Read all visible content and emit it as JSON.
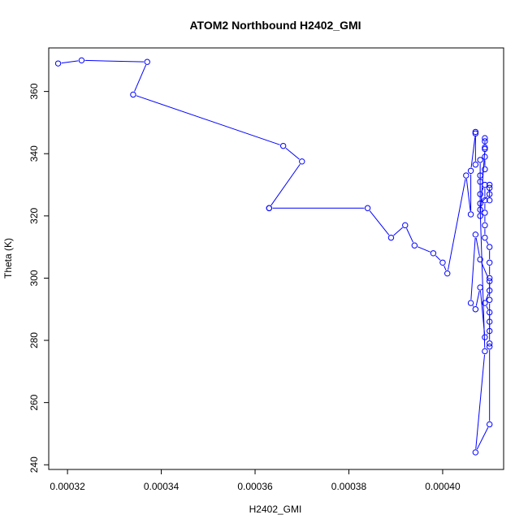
{
  "chart_data": {
    "type": "scatter",
    "title": "ATOM2 Northbound H2402_GMI",
    "xlabel": "H2402_GMI",
    "ylabel": "Theta (K)",
    "xlim": [
      0.000316,
      0.000413
    ],
    "ylim": [
      238.5,
      374
    ],
    "grid": false,
    "connect_points": true,
    "x_ticks": [
      0.00032,
      0.00034,
      0.00036,
      0.00038,
      0.0004
    ],
    "x_tick_labels": [
      "0.00032",
      "0.00034",
      "0.00036",
      "0.00038",
      "0.00040"
    ],
    "y_ticks": [
      240,
      260,
      280,
      300,
      320,
      340,
      360
    ],
    "y_tick_labels": [
      "240",
      "260",
      "280",
      "300",
      "320",
      "340",
      "360"
    ],
    "series": [
      {
        "color": "#0000ff",
        "marker": "open-circle",
        "x": [
          0.000318,
          0.000323,
          0.000337,
          0.000334,
          0.000366,
          0.00037,
          0.000363,
          0.000363,
          0.000384,
          0.000389,
          0.000392,
          0.000394,
          0.000398,
          0.0004,
          0.000401,
          0.000405,
          0.000406,
          0.000406,
          0.000407,
          0.000407,
          0.000407,
          0.000408,
          0.000408,
          0.000408,
          0.000409,
          0.000409,
          0.000409,
          0.000409,
          0.000409,
          0.000409,
          0.000408,
          0.000408,
          0.000409,
          0.000409,
          0.000409,
          0.000409,
          0.000409,
          0.00041,
          0.00041,
          0.00041,
          0.00041,
          0.000409,
          0.00041,
          0.00041,
          0.00041,
          0.000409,
          0.000408,
          0.000407,
          0.000406,
          0.000407,
          0.000408,
          0.00041,
          0.00041,
          0.00041,
          0.00041,
          0.00041,
          0.000407,
          0.000409,
          0.000408,
          0.000408,
          0.00041,
          0.00041,
          0.00041,
          0.00041
        ],
        "y": [
          369,
          370,
          369.5,
          359,
          342.5,
          337.5,
          322.5,
          322.5,
          322.5,
          313,
          317,
          310.5,
          308,
          305,
          301.5,
          333,
          320.5,
          334.5,
          346.5,
          347,
          336.5,
          338,
          331,
          320,
          341.5,
          344,
          345,
          342,
          339,
          335,
          333,
          327,
          330,
          325,
          321,
          317,
          313,
          310,
          305,
          300,
          296,
          292,
          289,
          286,
          283,
          281,
          297,
          290,
          292,
          314,
          306,
          299,
          293,
          279,
          278,
          253,
          244,
          276.5,
          322,
          324,
          327,
          329,
          330,
          325
        ]
      }
    ]
  }
}
